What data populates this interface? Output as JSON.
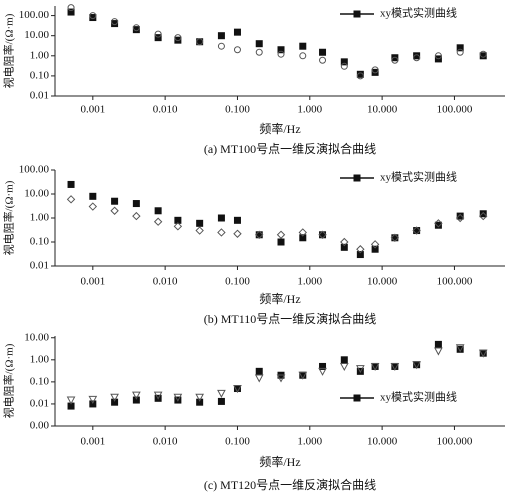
{
  "chart_data": [
    {
      "type": "scatter",
      "title": "(a) MT100号点一维反演拟合曲线",
      "x_label": "频率/Hz",
      "y_label": "视电阻率/(Ω·m)",
      "log_x": true,
      "log_y": true,
      "legend": "upper right",
      "x": [
        0.0005,
        0.001,
        0.002,
        0.004,
        0.008,
        0.015,
        0.03,
        0.06,
        0.1,
        0.2,
        0.4,
        0.8,
        1.5,
        3,
        5,
        8,
        15,
        30,
        60,
        120,
        250
      ],
      "series": [
        {
          "name": "xy模式实测曲线",
          "color": "#111111",
          "marker": "square",
          "values": [
            150,
            80,
            40,
            20,
            8,
            6,
            5,
            10,
            15,
            4,
            2,
            3,
            1.5,
            0.5,
            0.12,
            0.15,
            0.8,
            1.0,
            0.7,
            2.5,
            1.0
          ]
        },
        {
          "color": "#555555",
          "marker": "circle",
          "values": [
            250,
            100,
            50,
            25,
            12,
            8,
            5,
            3,
            2,
            1.5,
            1.2,
            1,
            0.6,
            0.3,
            0.1,
            0.2,
            0.6,
            0.8,
            1.0,
            1.5,
            1.2
          ]
        }
      ],
      "xlim": [
        0.0003,
        500
      ],
      "ylim": [
        0.01,
        300
      ],
      "xticks": [
        0.001,
        {
          "value": 0.01,
          "label": "0.010"
        },
        {
          "value": 0.1,
          "label": "0.100"
        },
        {
          "value": 1,
          "label": "1.000"
        },
        {
          "value": 10,
          "label": "10.000"
        },
        {
          "value": 100,
          "label": "100.000"
        }
      ],
      "yticks": [
        {
          "value": 0.01,
          "label": "0.01"
        },
        {
          "value": 0.1,
          "label": "0.10"
        },
        {
          "value": 1,
          "label": "1.00"
        },
        {
          "value": 10,
          "label": "10.00"
        },
        {
          "value": 100,
          "label": "100.00"
        }
      ]
    },
    {
      "type": "scatter",
      "title": "(b) MT110号点一维反演拟合曲线",
      "x_label": "频率/Hz",
      "y_label": "视电阻率/(Ω·m)",
      "log_x": true,
      "log_y": true,
      "legend": "upper right",
      "x": [
        0.0005,
        0.001,
        0.002,
        0.004,
        0.008,
        0.015,
        0.03,
        0.06,
        0.1,
        0.2,
        0.4,
        0.8,
        1.5,
        3,
        5,
        8,
        15,
        30,
        60,
        120,
        250
      ],
      "series": [
        {
          "name": "xy模式实测曲线",
          "color": "#111111",
          "marker": "square",
          "values": [
            25,
            8,
            5,
            4,
            2,
            0.8,
            0.6,
            1.0,
            0.8,
            0.2,
            0.1,
            0.15,
            0.2,
            0.06,
            0.03,
            0.05,
            0.15,
            0.3,
            0.5,
            1.2,
            1.5
          ]
        },
        {
          "color": "#555555",
          "marker": "diamond",
          "values": [
            6,
            3,
            2,
            1.2,
            0.7,
            0.45,
            0.3,
            0.25,
            0.22,
            0.2,
            0.2,
            0.25,
            0.2,
            0.1,
            0.05,
            0.08,
            0.15,
            0.3,
            0.6,
            1.0,
            1.2
          ]
        }
      ],
      "xlim": [
        0.0003,
        500
      ],
      "ylim": [
        0.01,
        100
      ],
      "xticks": [
        0.001,
        {
          "value": 0.01,
          "label": "0.010"
        },
        {
          "value": 0.1,
          "label": "0.100"
        },
        {
          "value": 1,
          "label": "1.000"
        },
        {
          "value": 10,
          "label": "10.000"
        },
        {
          "value": 100,
          "label": "100.000"
        }
      ],
      "yticks": [
        {
          "value": 0.01,
          "label": "0.01"
        },
        {
          "value": 0.1,
          "label": "0.10"
        },
        {
          "value": 1,
          "label": "1.00"
        },
        {
          "value": 10,
          "label": "10.00"
        },
        {
          "value": 100,
          "label": "100.00"
        }
      ]
    },
    {
      "type": "scatter",
      "title": "(c) MT120号点一维反演拟合曲线",
      "x_label": "频率/Hz",
      "y_label": "视电阻率/(Ω·m)",
      "log_x": true,
      "log_y": true,
      "legend": "lower right",
      "x": [
        0.0005,
        0.001,
        0.002,
        0.004,
        0.008,
        0.015,
        0.03,
        0.06,
        0.1,
        0.2,
        0.4,
        0.8,
        1.5,
        3,
        5,
        8,
        15,
        30,
        60,
        120,
        250
      ],
      "series": [
        {
          "name": "xy模式实测曲线",
          "color": "#111111",
          "marker": "square",
          "values": [
            0.008,
            0.01,
            0.012,
            0.015,
            0.018,
            0.015,
            0.012,
            0.013,
            0.05,
            0.3,
            0.2,
            0.2,
            0.5,
            1.0,
            0.3,
            0.5,
            0.5,
            0.6,
            5,
            3,
            2
          ]
        },
        {
          "color": "#555555",
          "marker": "triangle",
          "values": [
            0.015,
            0.016,
            0.02,
            0.025,
            0.025,
            0.02,
            0.02,
            0.03,
            0.05,
            0.15,
            0.15,
            0.2,
            0.3,
            0.5,
            0.4,
            0.5,
            0.5,
            0.6,
            2.5,
            3.5,
            2
          ]
        }
      ],
      "xlim": [
        0.0003,
        500
      ],
      "ylim": [
        0.001,
        12
      ],
      "xticks": [
        0.001,
        {
          "value": 0.01,
          "label": "0.010"
        },
        {
          "value": 0.1,
          "label": "0.100"
        },
        {
          "value": 1,
          "label": "1.000"
        },
        {
          "value": 10,
          "label": "10.000"
        },
        {
          "value": 100,
          "label": "100.000"
        }
      ],
      "yticks": [
        {
          "value": 0.001,
          "label": "0.00"
        },
        {
          "value": 0.01,
          "label": "0.01"
        },
        {
          "value": 0.1,
          "label": "0.10"
        },
        {
          "value": 1,
          "label": "1.00"
        },
        {
          "value": 10,
          "label": "10.00"
        }
      ]
    }
  ]
}
